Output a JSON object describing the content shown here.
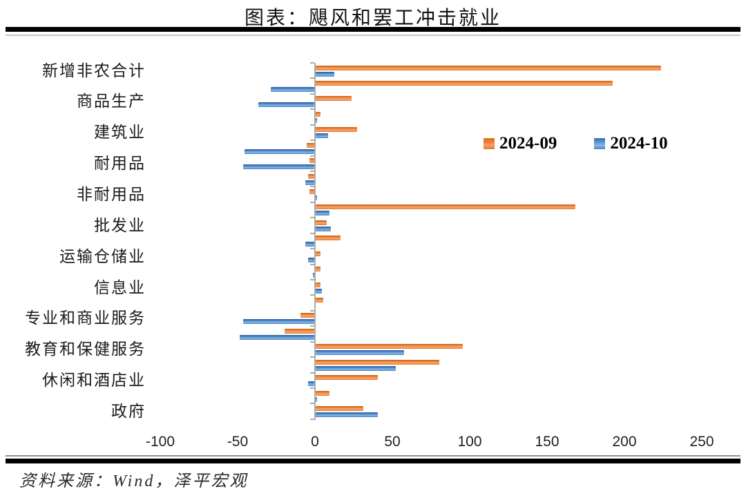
{
  "header": {
    "title": "图表：飓风和罢工冲击就业"
  },
  "footer": {
    "source": "资料来源：Wind，泽平宏观"
  },
  "colors": {
    "series_2024_09": "#ED7D31",
    "series_2024_10": "#5B9BD5",
    "axis": "#ABABAB",
    "rule": "#000000"
  },
  "chart_data": {
    "type": "bar",
    "orientation": "horizontal",
    "title": "图表：飓风和罢工冲击就业",
    "xlabel": "",
    "ylabel": "",
    "xlim": [
      -100,
      250
    ],
    "x_ticks": [
      -100,
      -50,
      0,
      50,
      100,
      150,
      200,
      250
    ],
    "grid": false,
    "legend_position": "upper-right-inside",
    "categories": [
      "新增非农合计",
      "",
      "商品生产",
      "",
      "建筑业",
      "",
      "耐用品",
      "",
      "非耐用品",
      "",
      "批发业",
      "",
      "运输仓储业",
      "",
      "信息业",
      "",
      "专业和商业服务",
      "",
      "教育和保健服务",
      "",
      "休闲和酒店业",
      "",
      "政府"
    ],
    "series": [
      {
        "name": "2024-09",
        "color": "#ED7D31",
        "values": [
          223,
          192,
          23,
          3,
          27,
          -5,
          -3,
          -4,
          -3,
          168,
          7,
          16,
          3,
          3,
          3,
          5,
          -9,
          -19,
          95,
          80,
          40,
          9,
          31
        ]
      },
      {
        "name": "2024-10",
        "color": "#5B9BD5",
        "values": [
          12,
          -28,
          -36,
          1,
          8,
          -45,
          -46,
          -6,
          1,
          9,
          10,
          -6,
          -4,
          -1,
          4,
          0,
          -46,
          -48,
          57,
          52,
          -4,
          1,
          40
        ]
      }
    ]
  }
}
